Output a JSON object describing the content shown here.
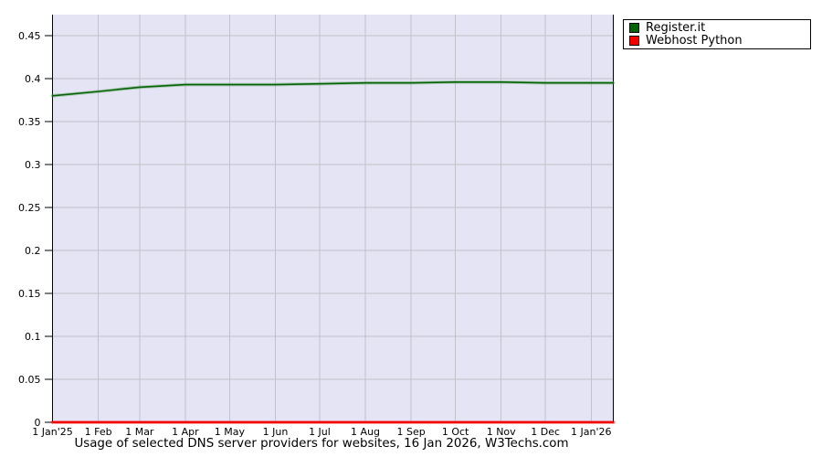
{
  "page": {
    "background": "#ffffff"
  },
  "legend": {
    "background": "#ffffff",
    "border_color": "#000000",
    "items": [
      {
        "label": "Register.it",
        "color": "#066206"
      },
      {
        "label": "Webhost Python",
        "color": "#f20202"
      }
    ]
  },
  "chart_data": {
    "type": "line",
    "title": "Usage of selected DNS server providers for websites, 16 Jan 2026, W3Techs.com",
    "xlabel": "",
    "ylabel": "",
    "grid": true,
    "legend_position": "top-right",
    "plot_bg": "#e4e4f5",
    "grid_color": "#c2c2c9",
    "axis_color": "#000000",
    "ylim": [
      0,
      0.4745
    ],
    "xlim_days": [
      0,
      380
    ],
    "y_ticks": [
      {
        "label": "0.45",
        "value": 0.45
      },
      {
        "label": "0.4",
        "value": 0.4
      },
      {
        "label": "0.35",
        "value": 0.35
      },
      {
        "label": "0.3",
        "value": 0.3
      },
      {
        "label": "0.25",
        "value": 0.25
      },
      {
        "label": "0.2",
        "value": 0.2
      },
      {
        "label": "0.15",
        "value": 0.15
      },
      {
        "label": "0.1",
        "value": 0.1
      },
      {
        "label": "0.05",
        "value": 0.05
      },
      {
        "label": "0",
        "value": 0
      }
    ],
    "x_ticks": [
      {
        "label": "1 Jan'25",
        "day": 0
      },
      {
        "label": "1 Feb",
        "day": 31
      },
      {
        "label": "1 Mar",
        "day": 59
      },
      {
        "label": "1 Apr",
        "day": 90
      },
      {
        "label": "1 May",
        "day": 120
      },
      {
        "label": "1 Jun",
        "day": 151
      },
      {
        "label": "1 Jul",
        "day": 181
      },
      {
        "label": "1 Aug",
        "day": 212
      },
      {
        "label": "1 Sep",
        "day": 243
      },
      {
        "label": "1 Oct",
        "day": 273
      },
      {
        "label": "1 Nov",
        "day": 304
      },
      {
        "label": "1 Dec",
        "day": 334
      },
      {
        "label": "1 Jan'26",
        "day": 365
      }
    ],
    "series": [
      {
        "name": "Register.it",
        "color": "#066206",
        "glow_color": "#4f9b4f",
        "line_width": 1.6,
        "x_days": [
          0,
          31,
          59,
          90,
          120,
          151,
          181,
          212,
          243,
          273,
          304,
          334,
          365,
          380
        ],
        "values": [
          0.38,
          0.385,
          0.39,
          0.393,
          0.393,
          0.393,
          0.394,
          0.395,
          0.395,
          0.396,
          0.396,
          0.395,
          0.395,
          0.395
        ]
      },
      {
        "name": "Webhost Python",
        "color": "#f20202",
        "glow_color": "#f20202",
        "line_width": 2,
        "x_days": [
          0,
          380
        ],
        "values": [
          0,
          0
        ]
      }
    ]
  }
}
